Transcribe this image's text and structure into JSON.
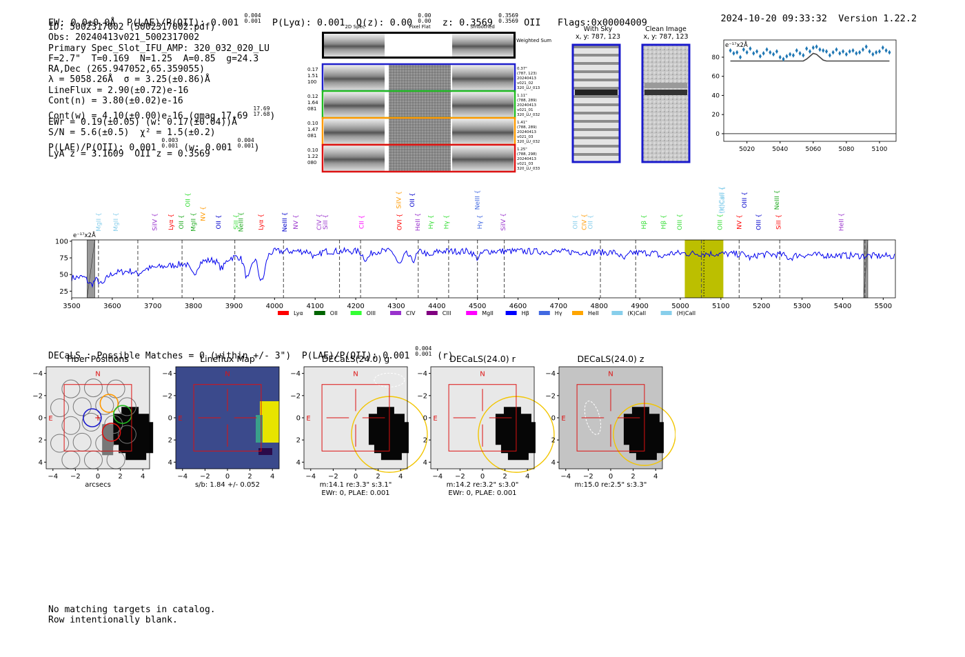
{
  "header": {
    "ew": "EW: 0.0±0.0Å",
    "plae_label": "P(LAE)/P(OII): 0.001",
    "plae_hi": "0.004",
    "plae_lo": "0.001",
    "plya": "P(Lyα): 0.001",
    "qz_label": "Q(z): 0.00",
    "qz_hi": "0.00",
    "qz_lo": "0.00",
    "z_label": "z: 0.3569",
    "z_hi": "0.3569",
    "z_lo": "0.3569",
    "z_line": "OII",
    "flags": "Flags:0x00004009",
    "datetime": "2024-10-20 09:33:32",
    "version": "Version 1.22.2"
  },
  "info": {
    "id": "ID: 5002317002 (5002317002.pdf)",
    "obs": "Obs: 20240413v021_5002317002",
    "primary": "Primary Spec_Slot_IFU_AMP: 320_032_020_LU",
    "params": "F=2.7\"  T=0.169  N=1.25  A=0.85  g=24.3",
    "radec": "RA,Dec (265.947052,65.359055)",
    "lambda": "λ = 5058.26Å  σ = 3.25(±0.86)Å",
    "lineflux": "LineFlux = 2.90(±0.72)e-16",
    "contn": "Cont(n) = 3.80(±0.02)e-16",
    "contw": "Cont(w) = 4.10(±0.00)e-16 (gmag 17.69",
    "gmag_hi": "17.69",
    "gmag_lo": "17.68",
    "contw_close": ")",
    "ewr": "EWr = 0.19(±0.05) (w: 0.17(±0.04))Å",
    "sn": "S/N = 5.6(±0.5)  χ² = 1.5(±0.2)",
    "plae": "P(LAE)/P(OII): 0.001",
    "plae_hi": "0.003",
    "plae_lo": "0.001",
    "plae_w": "(w: 0.001",
    "plae_w_hi": "0.004",
    "plae_w_lo": "0.001",
    "plae_close": ")",
    "lya_z": "LyA z = 3.1609  OII z = 0.3569"
  },
  "cutouts": {
    "col_titles": [
      "2D Spec",
      "Pixel Flat",
      "Smoothed"
    ],
    "weighted_sum": "Weighted Sum",
    "rows": [
      {
        "left": [
          "0.17",
          "1.51",
          "100"
        ],
        "right": [
          "0.37\"",
          "(787, 123)",
          "20240413",
          "v021_02",
          "320_LU_013"
        ],
        "color": "#1f1fcc"
      },
      {
        "left": [
          "0.12",
          "1.64",
          "081"
        ],
        "right": [
          "1.11\"",
          "(788, 289)",
          "20240413",
          "v021_01",
          "320_LU_032"
        ],
        "color": "#22bb22"
      },
      {
        "left": [
          "0.10",
          "1.47",
          "081"
        ],
        "right": [
          "1.41\"",
          "(788, 289)",
          "20240413",
          "v021_03",
          "320_LU_032"
        ],
        "color": "#ff9900"
      },
      {
        "left": [
          "0.10",
          "1.22",
          "080"
        ],
        "right": [
          "1.25\"",
          "(788, 298)",
          "20240413",
          "v021_03",
          "320_LU_033"
        ],
        "color": "#dd1111"
      }
    ],
    "with_sky": "With Sky",
    "with_sky_xy": "x, y: 787, 123",
    "clean": "Clean Image",
    "clean_xy": "x, y: 787, 123"
  },
  "zoom_chart": {
    "type": "scatter",
    "unit": "e⁻¹⁷x2Å",
    "x_ticks": [
      "5020",
      "5040",
      "5060",
      "5080",
      "5100"
    ],
    "y_ticks": [
      "0",
      "20",
      "40",
      "60",
      "80"
    ],
    "xlim": [
      5006,
      5110
    ],
    "ylim": [
      -8,
      98
    ],
    "x": [
      5010,
      5012,
      5014,
      5016,
      5018,
      5020,
      5022,
      5024,
      5026,
      5028,
      5030,
      5032,
      5034,
      5036,
      5038,
      5040,
      5042,
      5044,
      5046,
      5048,
      5050,
      5052,
      5054,
      5056,
      5058,
      5060,
      5062,
      5064,
      5066,
      5068,
      5070,
      5072,
      5074,
      5076,
      5078,
      5080,
      5082,
      5084,
      5086,
      5088,
      5090,
      5092,
      5094,
      5096,
      5098,
      5100,
      5102,
      5104,
      5106
    ],
    "y": [
      87,
      84,
      85,
      80,
      88,
      85,
      89,
      84,
      86,
      81,
      84,
      88,
      85,
      83,
      86,
      80,
      78,
      81,
      83,
      82,
      87,
      84,
      82,
      89,
      86,
      90,
      91,
      88,
      87,
      86,
      82,
      85,
      88,
      84,
      86,
      83,
      86,
      87,
      84,
      85,
      88,
      91,
      86,
      83,
      85,
      86,
      90,
      87,
      85
    ],
    "model": [
      76,
      76,
      76,
      76,
      76,
      76,
      76,
      76,
      76,
      76,
      76,
      76,
      76,
      76,
      76,
      76,
      76,
      76,
      76,
      76,
      76,
      76,
      76,
      78,
      81,
      84,
      83,
      80,
      77,
      76,
      76,
      76,
      76,
      76,
      76,
      76,
      76,
      76,
      76,
      76,
      76,
      76,
      76,
      76,
      76,
      76,
      76,
      76,
      76
    ]
  },
  "spectrum_chart": {
    "type": "line",
    "unit": "e⁻¹⁷x2Å",
    "xlim": [
      3500,
      5530
    ],
    "ylim": [
      15,
      102
    ],
    "x_ticks": [
      "3500",
      "3600",
      "3700",
      "3800",
      "3900",
      "4000",
      "4100",
      "4200",
      "4300",
      "4400",
      "4500",
      "4600",
      "4700",
      "4800",
      "4900",
      "5000",
      "5100",
      "5200",
      "5300",
      "5400",
      "5500"
    ],
    "y_ticks": [
      "25",
      "50",
      "75",
      "100"
    ],
    "line_markers": [
      3566,
      3663,
      3772,
      3902,
      4022,
      4160,
      4212,
      4354,
      4429,
      4500,
      4566,
      4803,
      4890,
      5052,
      5145,
      5245,
      5455
    ],
    "highlight_range": [
      5011,
      5106
    ],
    "masked_ranges": [
      [
        3538,
        3557
      ],
      [
        5452,
        5462
      ]
    ],
    "labels": [
      {
        "t": "MgII",
        "x": 3566,
        "c": "#87ceeb",
        "lvl": 0
      },
      {
        "t": "MgII",
        "x": 3609,
        "c": "#87ceeb",
        "lvl": 0
      },
      {
        "t": "SiIV",
        "x": 3705,
        "c": "#9932cc",
        "lvl": 0
      },
      {
        "t": "Lyα",
        "x": 3745,
        "c": "#ff0000",
        "lvl": 0
      },
      {
        "t": "OII",
        "x": 3770,
        "c": "#22aa22",
        "lvl": 0
      },
      {
        "t": "OII",
        "x": 3786,
        "c": "#33dd33",
        "lvl": 2
      },
      {
        "t": "MgII",
        "x": 3800,
        "c": "#22aa22",
        "lvl": 0
      },
      {
        "t": "NV",
        "x": 3824,
        "c": "#ff9900",
        "lvl": 1
      },
      {
        "t": "OII",
        "x": 3862,
        "c": "#0000cc",
        "lvl": 0
      },
      {
        "t": "SiII",
        "x": 3905,
        "c": "#33dd33",
        "lvl": 0
      },
      {
        "t": "NeIII",
        "x": 3917,
        "c": "#22aa22",
        "lvl": 0
      },
      {
        "t": "Lyα",
        "x": 3966,
        "c": "#ff0000",
        "lvl": 0
      },
      {
        "t": "NeIII",
        "x": 4025,
        "c": "#0000cc",
        "lvl": 0
      },
      {
        "t": "NV",
        "x": 4052,
        "c": "#9932cc",
        "lvl": 0
      },
      {
        "t": "CIV",
        "x": 4110,
        "c": "#9932cc",
        "lvl": 0
      },
      {
        "t": "SiII",
        "x": 4125,
        "c": "#9932cc",
        "lvl": 0
      },
      {
        "t": "CII",
        "x": 4214,
        "c": "#ff00ff",
        "lvl": 0
      },
      {
        "t": "SiIV",
        "x": 4306,
        "c": "#ff9900",
        "lvl": 2
      },
      {
        "t": "OVI",
        "x": 4308,
        "c": "#ff0000",
        "lvl": 0
      },
      {
        "t": "OII",
        "x": 4339,
        "c": "#0000cc",
        "lvl": 2
      },
      {
        "t": "HeII",
        "x": 4353,
        "c": "#9932cc",
        "lvl": 0
      },
      {
        "t": "Hγ",
        "x": 4385,
        "c": "#33dd33",
        "lvl": 0
      },
      {
        "t": "Hγ",
        "x": 4423,
        "c": "#33dd33",
        "lvl": 0
      },
      {
        "t": "NeIII",
        "x": 4500,
        "c": "#4169e1",
        "lvl": 2
      },
      {
        "t": "Hγ",
        "x": 4506,
        "c": "#4169e1",
        "lvl": 0
      },
      {
        "t": "SiIV",
        "x": 4563,
        "c": "#9932cc",
        "lvl": 0
      },
      {
        "t": "OII",
        "x": 4741,
        "c": "#87ceeb",
        "lvl": 0
      },
      {
        "t": "CIV",
        "x": 4763,
        "c": "#ff9900",
        "lvl": 0
      },
      {
        "t": "OII",
        "x": 4778,
        "c": "#87ceeb",
        "lvl": 0
      },
      {
        "t": "Hβ",
        "x": 4910,
        "c": "#33dd33",
        "lvl": 0
      },
      {
        "t": "Hβ",
        "x": 4958,
        "c": "#33dd33",
        "lvl": 0
      },
      {
        "t": "OIII",
        "x": 4998,
        "c": "#33dd33",
        "lvl": 0
      },
      {
        "t": "(H)CaII",
        "x": 5101,
        "c": "#87ceeb",
        "lvl": 2
      },
      {
        "t": "(K)CaII",
        "x": 5104,
        "c": "#87ceeb",
        "lvl": 2
      },
      {
        "t": "OIII",
        "x": 5098,
        "c": "#33dd33",
        "lvl": 0
      },
      {
        "t": "NV",
        "x": 5145,
        "c": "#ff0000",
        "lvl": 0
      },
      {
        "t": "OIII",
        "x": 5158,
        "c": "#0000cc",
        "lvl": 2
      },
      {
        "t": "OIII",
        "x": 5193,
        "c": "#0000cc",
        "lvl": 0
      },
      {
        "t": "NeIII",
        "x": 5238,
        "c": "#22aa22",
        "lvl": 2
      },
      {
        "t": "SiII",
        "x": 5242,
        "c": "#ff0000",
        "lvl": 0
      },
      {
        "t": "HeII",
        "x": 5397,
        "c": "#9932cc",
        "lvl": 0
      }
    ],
    "legend": [
      {
        "t": "Lyα",
        "c": "#ff0000"
      },
      {
        "t": "OII",
        "c": "#006400"
      },
      {
        "t": "OIII",
        "c": "#33ff33"
      },
      {
        "t": "CIV",
        "c": "#9932cc"
      },
      {
        "t": "CIII",
        "c": "#800080"
      },
      {
        "t": "MgII",
        "c": "#ff00ff"
      },
      {
        "t": "Hβ",
        "c": "#0000ff"
      },
      {
        "t": "Hγ",
        "c": "#4169e1"
      },
      {
        "t": "HeII",
        "c": "#ffa500"
      },
      {
        "t": "(K)CaII",
        "c": "#87ceeb"
      },
      {
        "t": "(H)CaII",
        "c": "#87ceeb"
      }
    ]
  },
  "decals": {
    "summary": "DECaLS : Possible Matches = 0 (within +/- 3\")  P(LAE)/P(OII): 0.001",
    "summary_hi": "0.004",
    "summary_lo": "0.001",
    "summary_tail": "(r)",
    "panels": [
      {
        "title": "Fiber Positions",
        "cap1": "arcsecs",
        "cap2": ""
      },
      {
        "title": "Lineflux Map",
        "cap1": "s/b: 1.84 +/- 0.052",
        "cap2": ""
      },
      {
        "title": "DECaLS(24.0) g",
        "cap1": "m:14.1  re:3.3\"  s:3.1\"",
        "cap2": "EWr: 0, PLAE: 0.001"
      },
      {
        "title": "DECaLS(24.0) r",
        "cap1": "m:14.2  re:3.2\"  s:3.0\"",
        "cap2": "EWr: 0, PLAE: 0.001"
      },
      {
        "title": "DECaLS(24.0) z",
        "cap1": "m:15.0  re:2.5\"  s:3.3\"",
        "cap2": ""
      }
    ],
    "ticks": [
      "−4",
      "−2",
      "0",
      "2",
      "4"
    ],
    "north": "N",
    "east": "E"
  },
  "footer": {
    "line1": "No matching targets in catalog.",
    "line2": "Row intentionally blank."
  }
}
